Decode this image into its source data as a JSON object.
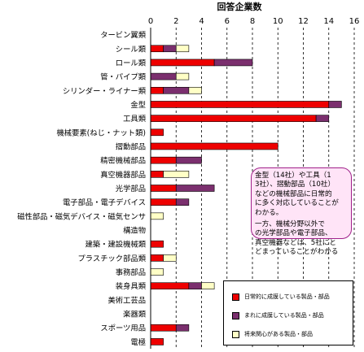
{
  "chart_data": {
    "type": "bar",
    "orientation": "horizontal",
    "stacked": true,
    "title": "回答企業数",
    "xlim": [
      0,
      16
    ],
    "xticks": [
      0,
      2,
      4,
      6,
      8,
      10,
      12,
      14,
      16
    ],
    "grid": true,
    "categories": [
      "タービン翼類",
      "シール類",
      "ロール類",
      "管・パイプ類",
      "シリンダー・ライナー類",
      "金型",
      "工具類",
      "機械要素(ねじ・ナット類)",
      "摺動部品",
      "精密機械部品",
      "真空機器部品",
      "光学部品",
      "電子部品・電子デバイス",
      "磁性部品・磁気デバイス・磁気センサ",
      "構造物",
      "建築・建設機械類",
      "プラスチック部品類",
      "事務部品",
      "装身具類",
      "美術工芸品",
      "楽器類",
      "スポーツ用品",
      "電極"
    ],
    "series": [
      {
        "name": "日常的に成膜している製品・部品",
        "color": "#ee0000",
        "values": [
          0,
          1,
          5,
          0,
          1,
          14,
          13,
          1,
          10,
          2,
          1,
          2,
          2,
          0,
          0,
          1,
          1,
          0,
          3,
          0,
          0,
          2,
          1
        ]
      },
      {
        "name": "まれに成膜している製品・部品",
        "color": "#7b2f6e",
        "values": [
          0,
          1,
          3,
          2,
          2,
          1,
          1,
          0,
          0,
          2,
          0,
          3,
          1,
          0,
          0,
          0,
          0,
          0,
          1,
          0,
          0,
          1,
          0
        ]
      },
      {
        "name": "将来関心がある製品・部品",
        "color": "#ffffc6",
        "values": [
          0,
          1,
          0,
          1,
          1,
          0,
          0,
          0,
          0,
          0,
          2,
          0,
          0,
          1,
          0,
          0,
          1,
          1,
          1,
          0,
          0,
          0,
          0
        ]
      }
    ],
    "legend_position": "bottom-right"
  },
  "annotation": {
    "paragraph1": "金型（14社）や工具（1\n3社）、摺動部品（10社）\nなどの機械部品に日常的\nに多く対応していることが\nわかる。",
    "paragraph2": "一方、機械分野以外で\nの光学部品や電子部品、\n真空機器などは、5社にと\nどまっていることがわかる"
  },
  "colors": {
    "axis": "#000000",
    "grid": "#000000",
    "callout_bg": "#ffe4f7",
    "callout_border": "#a0208a"
  }
}
